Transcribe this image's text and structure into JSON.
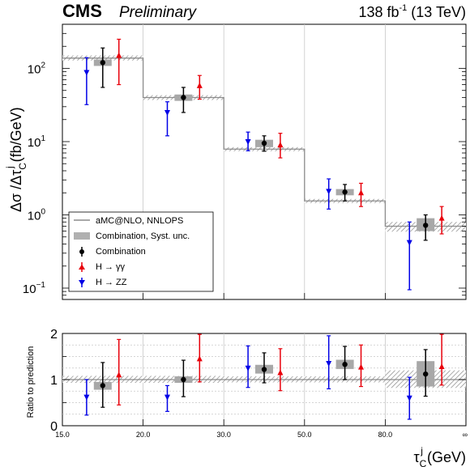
{
  "header": {
    "experiment": "CMS",
    "status": "Preliminary",
    "lumi": "138 fb",
    "lumi_exp": "-1",
    "energy": "(13 TeV)"
  },
  "chart_data": [
    {
      "type": "scatter",
      "panel": "main",
      "ylabel": "Δσ /Δτ",
      "ylabel_sub": "C",
      "ylabel_sup": "j",
      "ylabel_unit": "(fb/GeV)",
      "yscale": "log",
      "ylim": [
        0.07,
        400
      ],
      "yticks": [
        {
          "v": 0.1,
          "m": "10",
          "e": "−1"
        },
        {
          "v": 1,
          "m": "10",
          "e": "0"
        },
        {
          "v": 10,
          "m": "10",
          "e": "1"
        },
        {
          "v": 100,
          "m": "10",
          "e": "2"
        }
      ],
      "bins": [
        "15.0-20.0",
        "20.0-30.0",
        "30.0-50.0",
        "50.0-80.0",
        "80.0-inf"
      ],
      "prediction": {
        "name": "aMC@NLO, NNLOPS",
        "values": [
          138,
          40,
          7.9,
          1.55,
          0.7
        ],
        "band": [
          [
            128,
            150
          ],
          [
            37,
            43
          ],
          [
            7.4,
            8.4
          ],
          [
            1.45,
            1.65
          ],
          [
            0.59,
            0.8
          ]
        ]
      },
      "series": [
        {
          "name": "Combination",
          "color": "#000000",
          "values": [
            120,
            40,
            9.5,
            2.05,
            0.72
          ],
          "err_lo": [
            55,
            25,
            7.4,
            1.55,
            0.45
          ],
          "err_hi": [
            190,
            55,
            12,
            2.6,
            1.0
          ],
          "syst_lo": [
            108,
            36,
            8.4,
            1.85,
            0.6
          ],
          "syst_hi": [
            132,
            44,
            10.6,
            2.25,
            0.9
          ]
        },
        {
          "name": "H → γγ",
          "color": "#e8000b",
          "values": [
            150,
            58,
            9,
            2.0,
            0.9
          ],
          "err_lo": [
            60,
            38,
            6,
            1.3,
            0.55
          ],
          "err_hi": [
            250,
            80,
            13,
            2.7,
            1.3
          ]
        },
        {
          "name": "H → ZZ",
          "color": "#0000e6",
          "values": [
            88,
            25,
            10,
            2.1,
            0.42
          ],
          "err_lo": [
            32,
            12,
            7.5,
            1.2,
            0.095
          ],
          "err_hi": [
            140,
            35,
            13.5,
            3.1,
            0.8
          ]
        }
      ],
      "legend": {
        "position": "bottom-left",
        "entries": [
          "aMC@NLO, NNLOPS",
          "Combination, Syst. unc.",
          "Combination",
          "H → γγ",
          "H → ZZ"
        ]
      }
    },
    {
      "type": "scatter",
      "panel": "ratio",
      "ylabel": "Ratio to prediction",
      "ylim": [
        0,
        2
      ],
      "yticks": [
        "0",
        "1",
        "2"
      ],
      "xlabel": "τ",
      "xlabel_sub": "C",
      "xlabel_sup": "j",
      "xlabel_unit": "(GeV)",
      "xticks": [
        "15.0",
        "20.0",
        "30.0",
        "50.0",
        "80.0",
        "∞"
      ],
      "band": [
        [
          0.93,
          1.08
        ],
        [
          0.93,
          1.08
        ],
        [
          0.94,
          1.07
        ],
        [
          0.94,
          1.07
        ],
        [
          0.82,
          1.2
        ]
      ],
      "series": [
        {
          "name": "Combination",
          "color": "#000000",
          "values": [
            0.87,
            1.0,
            1.22,
            1.33,
            1.12
          ],
          "err_lo": [
            0.4,
            0.63,
            0.93,
            1.0,
            0.64
          ],
          "err_hi": [
            1.37,
            1.42,
            1.58,
            1.72,
            1.65
          ],
          "syst_lo": [
            0.78,
            0.93,
            1.13,
            1.23,
            0.85
          ],
          "syst_hi": [
            0.95,
            1.07,
            1.32,
            1.43,
            1.4
          ]
        },
        {
          "name": "H → γγ",
          "color": "#e8000b",
          "values": [
            1.1,
            1.45,
            1.15,
            1.27,
            1.28
          ],
          "err_lo": [
            0.45,
            0.95,
            0.76,
            0.85,
            0.88
          ],
          "err_hi": [
            1.87,
            1.98,
            1.67,
            1.75,
            1.98
          ]
        },
        {
          "name": "H → ZZ",
          "color": "#0000e6",
          "values": [
            0.62,
            0.62,
            1.25,
            1.35,
            0.6
          ],
          "err_lo": [
            0.23,
            0.31,
            0.83,
            0.8,
            0.14
          ],
          "err_hi": [
            1.0,
            0.87,
            1.73,
            1.95,
            1.05
          ]
        }
      ]
    }
  ]
}
